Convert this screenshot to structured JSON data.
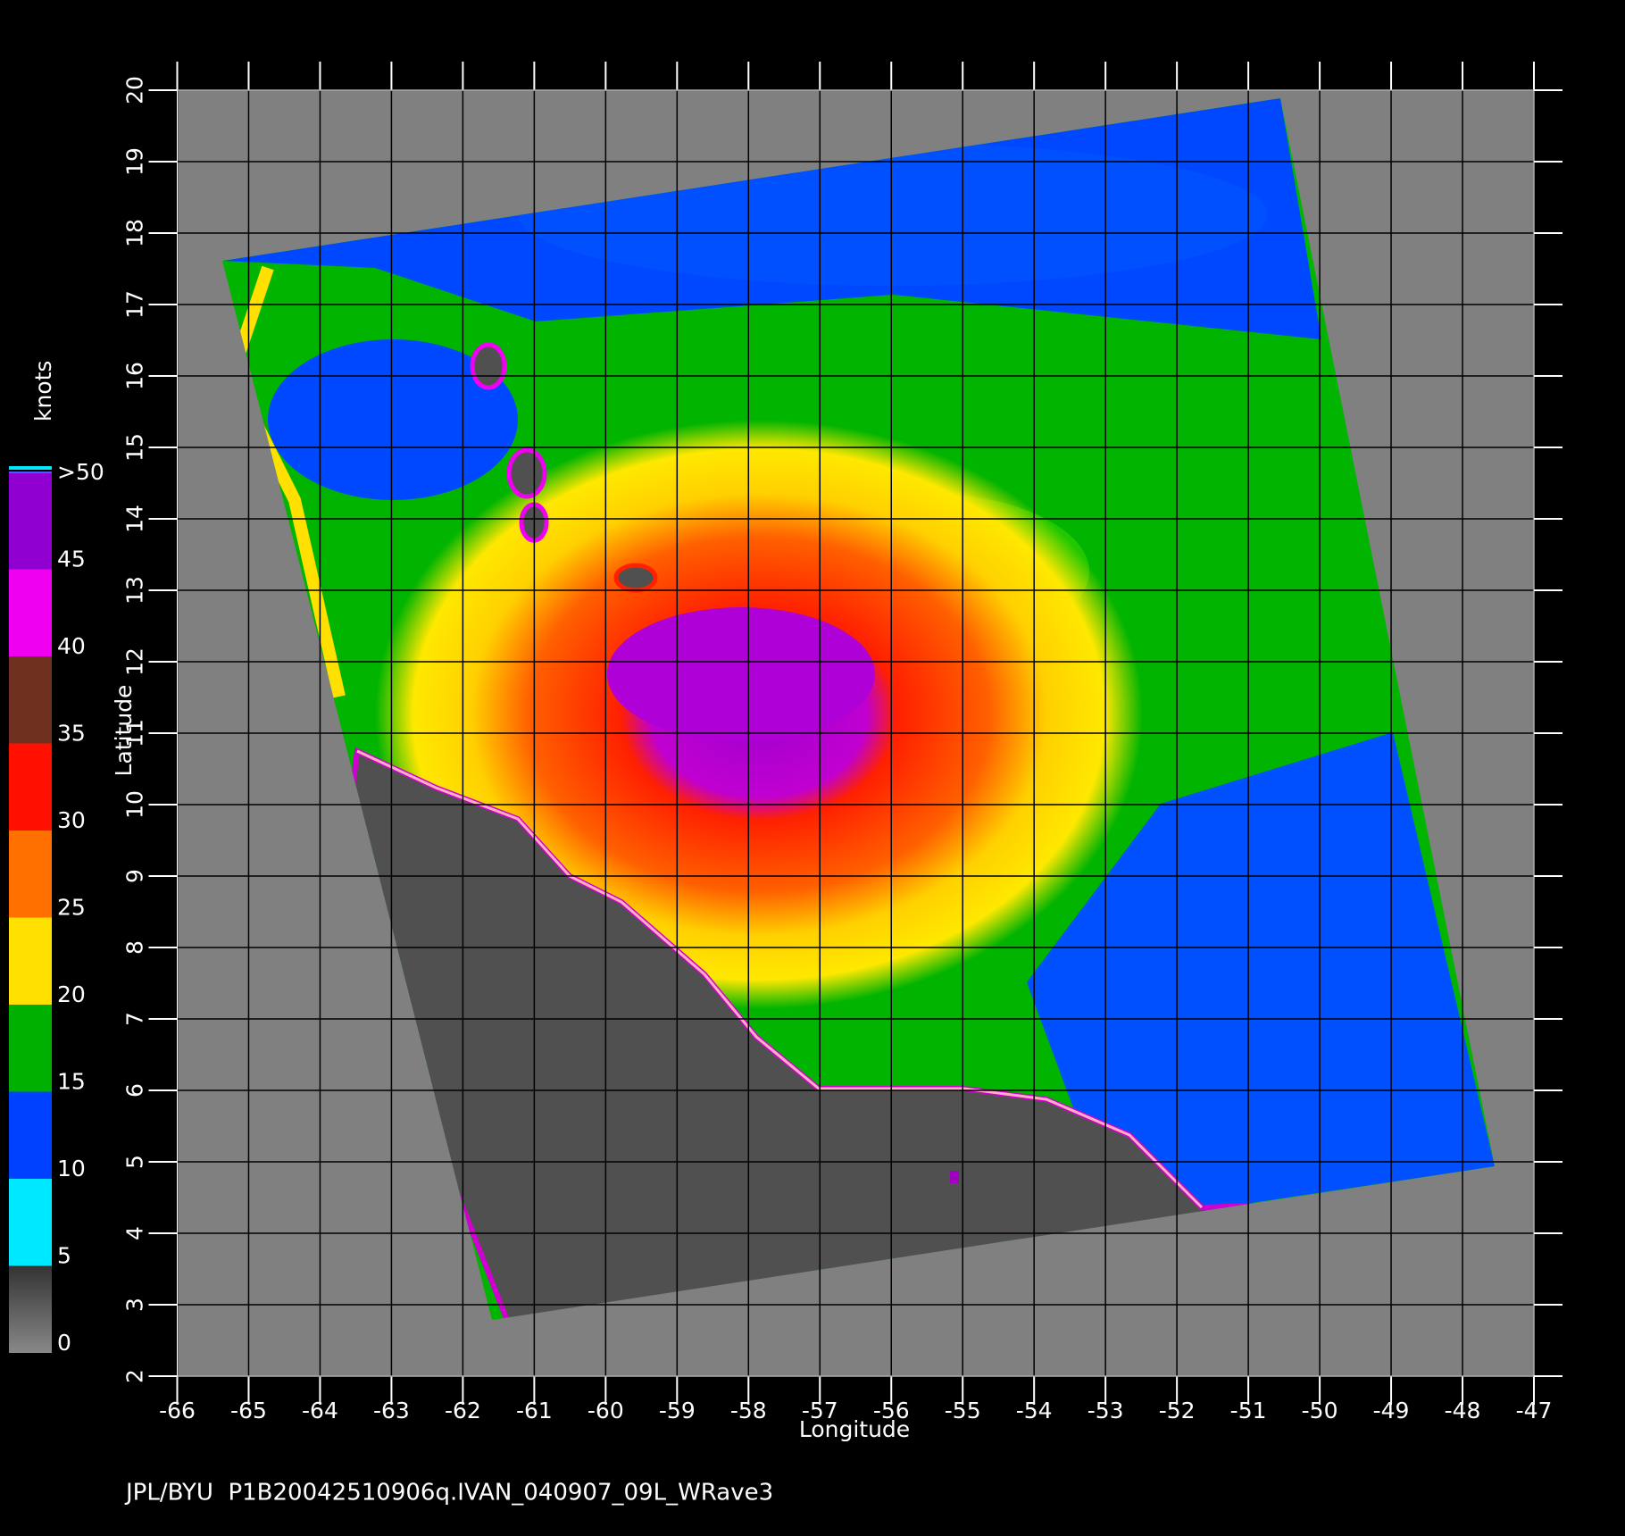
{
  "chart_data": {
    "type": "map",
    "footer": "JPL/BYU  P1B20042510906q.IVAN_040907_09L_WRave3",
    "x_label": "Longitude",
    "y_label": "Latitude",
    "xlim": [
      -66,
      -47
    ],
    "xticks": [
      -66,
      -65,
      -64,
      -63,
      -62,
      -61,
      -60,
      -59,
      -58,
      -57,
      -56,
      -55,
      -54,
      -53,
      -52,
      -51,
      -50,
      -49,
      -48,
      -47
    ],
    "ylim": [
      2,
      20
    ],
    "yticks": [
      2,
      3,
      4,
      5,
      6,
      7,
      8,
      9,
      10,
      11,
      12,
      13,
      14,
      15,
      16,
      17,
      18,
      19,
      20
    ],
    "grid": true,
    "colorbar": {
      "label": "knots",
      "lim": [
        0,
        50
      ],
      "ticks": [
        0,
        5,
        10,
        15,
        20,
        25,
        30,
        35,
        40,
        45,
        {
          "value": 50,
          "label": ">50"
        }
      ],
      "colors": [
        "#404040",
        "#00e8ff",
        "#0040ff",
        "#00b000",
        "#ffe000",
        "#ff7000",
        "#ff1000",
        "#703020",
        "#f000f0",
        "#9000d0"
      ]
    }
  }
}
